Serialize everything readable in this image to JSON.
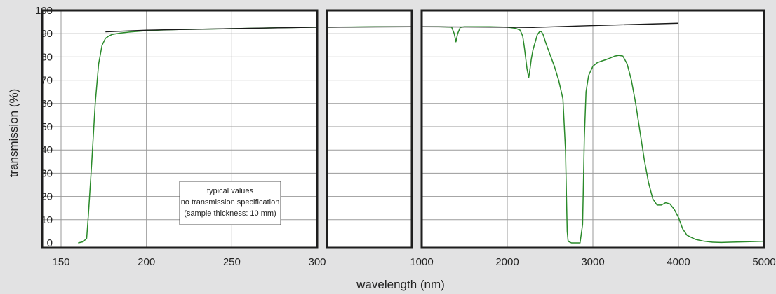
{
  "chart_data": {
    "type": "line",
    "xlabel": "wavelength (nm)",
    "ylabel": "transmission (%)",
    "ylim": [
      0,
      100
    ],
    "y_ticks": [
      "0",
      "10",
      "20",
      "30",
      "40",
      "50",
      "60",
      "70",
      "80",
      "90",
      "100"
    ],
    "grid": true,
    "note_lines": [
      "typical values",
      "no transmission specification",
      "(sample thickness: 10 mm)"
    ],
    "colors": {
      "background": "#e2e2e3",
      "plot_background": "#ffffff",
      "frame": "#1e1e1e",
      "grid": "#9a9a9a",
      "measured_curve": "#2a8a2a",
      "reference_curve": "#1a1a1a"
    },
    "panels": [
      {
        "id": "uv",
        "xlim": [
          150,
          300
        ],
        "x_ticks": [
          "150",
          "200",
          "250",
          "300"
        ],
        "tick_values": [
          150,
          200,
          250,
          300
        ],
        "series": [
          {
            "role": "measured",
            "x": [
              160,
              163,
              165,
              166,
              168,
              170,
              172,
              174,
              176,
              178,
              180,
              185,
              190,
              195,
              200,
              210,
              220,
              240,
              260,
              280,
              300
            ],
            "y": [
              0,
              0.5,
              2,
              12,
              35,
              60,
              77,
              85,
              88,
              89,
              89.7,
              90.3,
              90.7,
              91,
              91.3,
              91.6,
              91.8,
              92,
              92.3,
              92.6,
              92.8
            ]
          },
          {
            "role": "reference",
            "x": [
              176,
              200,
              250,
              300
            ],
            "y": [
              90.8,
              91.5,
              92.2,
              92.8
            ]
          }
        ]
      },
      {
        "id": "visible",
        "xlim": [
          300,
          1000
        ],
        "x_ticks": [],
        "tick_values": [],
        "series": [
          {
            "role": "measured",
            "x": [
              300,
              500,
              700,
              1000
            ],
            "y": [
              92.8,
              92.9,
              93,
              93
            ]
          },
          {
            "role": "reference",
            "x": [
              300,
              1000
            ],
            "y": [
              92.8,
              93
            ]
          }
        ]
      },
      {
        "id": "ir",
        "xlim": [
          1000,
          5000
        ],
        "x_ticks": [
          "1000",
          "2000",
          "3000",
          "4000",
          "5000"
        ],
        "tick_values": [
          1000,
          2000,
          3000,
          4000,
          5000
        ],
        "series": [
          {
            "role": "measured",
            "x": [
              1000,
              1200,
              1350,
              1380,
              1400,
              1420,
              1450,
              1500,
              1800,
              2000,
              2100,
              2150,
              2180,
              2200,
              2230,
              2250,
              2270,
              2280,
              2300,
              2350,
              2380,
              2400,
              2420,
              2450,
              2500,
              2550,
              2600,
              2650,
              2680,
              2700,
              2710,
              2720,
              2750,
              2800,
              2850,
              2880,
              2900,
              2920,
              2950,
              3000,
              3050,
              3100,
              3150,
              3200,
              3250,
              3300,
              3350,
              3400,
              3450,
              3500,
              3550,
              3600,
              3650,
              3700,
              3750,
              3800,
              3850,
              3900,
              3950,
              4000,
              4050,
              4100,
              4200,
              4300,
              4400,
              4500,
              4600,
              4800,
              5000
            ],
            "y": [
              93,
              93,
              92.8,
              90,
              86.5,
              90,
              92.7,
              93,
              93,
              92.8,
              92.3,
              91.5,
              89,
              84,
              75,
              71,
              76,
              79,
              83,
              89.5,
              91,
              90.8,
              89.5,
              86,
              81,
              76,
              70,
              62,
              40,
              5,
              1,
              0.5,
              0,
              0,
              0,
              8,
              45,
              65,
              72,
              76,
              77.5,
              78.2,
              78.8,
              79.5,
              80.3,
              80.7,
              80.4,
              77,
              70,
              60,
              48,
              36,
              26,
              19,
              16.3,
              16.3,
              17.3,
              16.8,
              14.5,
              11,
              6,
              3.3,
              1.5,
              0.7,
              0.3,
              0.2,
              0.3,
              0.5,
              0.7
            ]
          },
          {
            "role": "reference",
            "x": [
              1000,
              2000,
              2300,
              3000,
              4000
            ],
            "y": [
              93,
              92.8,
              92.7,
              93.5,
              94.5
            ]
          }
        ]
      }
    ]
  }
}
